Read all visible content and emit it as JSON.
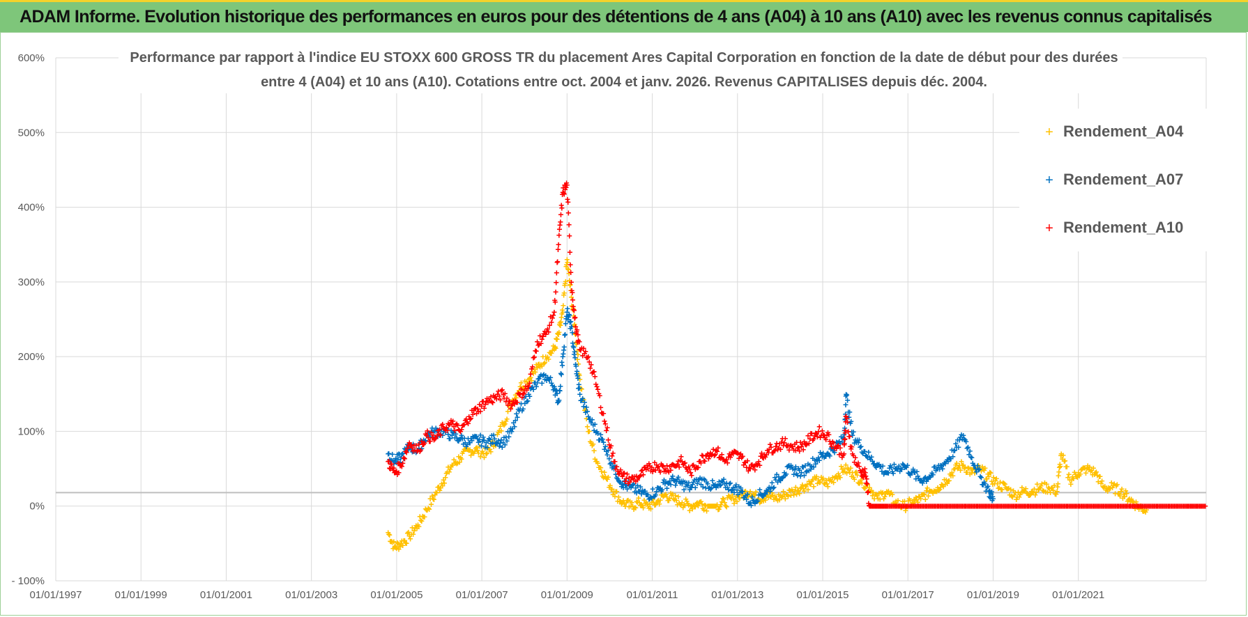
{
  "banner": {
    "title": "ADAM Informe. Evolution historique des performances en euros pour des détentions de 4 ans (A04) à 10 ans (A10) avec les revenus connus capitalisés"
  },
  "colors": {
    "banner_bg": "#7ec67a",
    "banner_accent": "#f5d22a",
    "A04": "#ffc000",
    "A07": "#0070c0",
    "A10": "#ff0000",
    "grid": "#d9d9d9",
    "text": "#595959"
  },
  "chart_data": {
    "type": "scatter",
    "title_lines": [
      "Performance par rapport à l'indice EU STOXX 600 GROSS TR  du placement Ares Capital Corporation en fonction de la date de début pour des durées",
      "entre 4 (A04) et 10 ans (A10).  Cotations entre oct. 2004 et janv. 2026.  Revenus CAPITALISES  depuis déc. 2004."
    ],
    "xlabel": "",
    "ylabel": "",
    "xlim": [
      1997.0,
      2024.0
    ],
    "ylim": [
      -100,
      600
    ],
    "y_ticks": [
      "- 100%",
      "0%",
      "100%",
      "200%",
      "300%",
      "400%",
      "500%",
      "600%"
    ],
    "y_tick_values": [
      -100,
      0,
      100,
      200,
      300,
      400,
      500,
      600
    ],
    "x_ticks": [
      "01/01/1997",
      "01/01/1999",
      "01/01/2001",
      "01/01/2003",
      "01/01/2005",
      "01/01/2007",
      "01/01/2009",
      "01/01/2011",
      "01/01/2013",
      "01/01/2015",
      "01/01/2017",
      "01/01/2019",
      "01/01/2021"
    ],
    "x_tick_values": [
      1997,
      1999,
      2001,
      2003,
      2005,
      2007,
      2009,
      2011,
      2013,
      2015,
      2017,
      2019,
      2021
    ],
    "reference_line_y": 18,
    "legend": [
      "Rendement_A04",
      "Rendement_A07",
      "Rendement_A10"
    ],
    "legend_position": "top-right",
    "marker": "+",
    "series": [
      {
        "name": "Rendement_A04",
        "color": "#ffc000",
        "points": [
          [
            2004.8,
            -35
          ],
          [
            2004.95,
            -55
          ],
          [
            2005.1,
            -50
          ],
          [
            2005.3,
            -40
          ],
          [
            2005.5,
            -25
          ],
          [
            2005.7,
            -5
          ],
          [
            2005.9,
            15
          ],
          [
            2006.1,
            35
          ],
          [
            2006.3,
            55
          ],
          [
            2006.5,
            65
          ],
          [
            2006.7,
            75
          ],
          [
            2006.9,
            75
          ],
          [
            2007.1,
            70
          ],
          [
            2007.3,
            85
          ],
          [
            2007.5,
            110
          ],
          [
            2007.7,
            140
          ],
          [
            2007.9,
            160
          ],
          [
            2008.1,
            170
          ],
          [
            2008.3,
            185
          ],
          [
            2008.5,
            200
          ],
          [
            2008.7,
            210
          ],
          [
            2008.8,
            230
          ],
          [
            2008.9,
            260
          ],
          [
            2009.0,
            330
          ],
          [
            2009.1,
            280
          ],
          [
            2009.2,
            230
          ],
          [
            2009.3,
            170
          ],
          [
            2009.5,
            100
          ],
          [
            2009.7,
            60
          ],
          [
            2009.9,
            40
          ],
          [
            2010.1,
            20
          ],
          [
            2010.3,
            5
          ],
          [
            2010.5,
            0
          ],
          [
            2010.7,
            5
          ],
          [
            2010.9,
            0
          ],
          [
            2011.1,
            5
          ],
          [
            2011.3,
            15
          ],
          [
            2011.5,
            10
          ],
          [
            2011.7,
            5
          ],
          [
            2011.9,
            0
          ],
          [
            2012.1,
            5
          ],
          [
            2012.3,
            0
          ],
          [
            2012.5,
            0
          ],
          [
            2012.7,
            5
          ],
          [
            2012.9,
            10
          ],
          [
            2013.1,
            15
          ],
          [
            2013.3,
            20
          ],
          [
            2013.5,
            10
          ],
          [
            2013.7,
            15
          ],
          [
            2013.9,
            10
          ],
          [
            2014.1,
            15
          ],
          [
            2014.3,
            20
          ],
          [
            2014.5,
            25
          ],
          [
            2014.7,
            30
          ],
          [
            2014.9,
            35
          ],
          [
            2015.1,
            30
          ],
          [
            2015.3,
            40
          ],
          [
            2015.5,
            50
          ],
          [
            2015.7,
            45
          ],
          [
            2015.9,
            35
          ],
          [
            2016.1,
            25
          ],
          [
            2016.3,
            10
          ],
          [
            2016.5,
            20
          ],
          [
            2016.7,
            5
          ],
          [
            2016.9,
            0
          ],
          [
            2017.1,
            5
          ],
          [
            2017.3,
            10
          ],
          [
            2017.5,
            20
          ],
          [
            2017.7,
            25
          ],
          [
            2017.9,
            35
          ],
          [
            2018.1,
            50
          ],
          [
            2018.3,
            55
          ],
          [
            2018.5,
            45
          ],
          [
            2018.7,
            50
          ],
          [
            2018.9,
            40
          ],
          [
            2019.1,
            30
          ],
          [
            2019.3,
            25
          ],
          [
            2019.5,
            15
          ],
          [
            2019.7,
            20
          ],
          [
            2019.9,
            20
          ],
          [
            2020.1,
            25
          ],
          [
            2020.3,
            25
          ],
          [
            2020.5,
            20
          ],
          [
            2020.6,
            70
          ],
          [
            2020.8,
            35
          ],
          [
            2021.0,
            45
          ],
          [
            2021.2,
            50
          ],
          [
            2021.4,
            45
          ],
          [
            2021.6,
            25
          ],
          [
            2021.8,
            25
          ],
          [
            2022.0,
            20
          ],
          [
            2022.2,
            10
          ],
          [
            2022.4,
            0
          ],
          [
            2022.6,
            -5
          ]
        ]
      },
      {
        "name": "Rendement_A07",
        "color": "#0070c0",
        "points": [
          [
            2004.8,
            70
          ],
          [
            2004.95,
            60
          ],
          [
            2005.1,
            65
          ],
          [
            2005.3,
            80
          ],
          [
            2005.5,
            75
          ],
          [
            2005.7,
            95
          ],
          [
            2005.9,
            100
          ],
          [
            2006.1,
            100
          ],
          [
            2006.3,
            95
          ],
          [
            2006.5,
            90
          ],
          [
            2006.7,
            85
          ],
          [
            2006.9,
            90
          ],
          [
            2007.1,
            85
          ],
          [
            2007.3,
            90
          ],
          [
            2007.5,
            85
          ],
          [
            2007.7,
            100
          ],
          [
            2007.9,
            130
          ],
          [
            2008.1,
            150
          ],
          [
            2008.3,
            165
          ],
          [
            2008.5,
            175
          ],
          [
            2008.7,
            160
          ],
          [
            2008.8,
            140
          ],
          [
            2008.9,
            200
          ],
          [
            2009.0,
            260
          ],
          [
            2009.1,
            240
          ],
          [
            2009.2,
            190
          ],
          [
            2009.3,
            150
          ],
          [
            2009.5,
            120
          ],
          [
            2009.7,
            100
          ],
          [
            2009.9,
            80
          ],
          [
            2010.1,
            50
          ],
          [
            2010.3,
            30
          ],
          [
            2010.5,
            25
          ],
          [
            2010.7,
            20
          ],
          [
            2010.9,
            15
          ],
          [
            2011.1,
            20
          ],
          [
            2011.3,
            30
          ],
          [
            2011.5,
            35
          ],
          [
            2011.7,
            30
          ],
          [
            2011.9,
            25
          ],
          [
            2012.1,
            35
          ],
          [
            2012.3,
            30
          ],
          [
            2012.5,
            25
          ],
          [
            2012.7,
            30
          ],
          [
            2012.9,
            25
          ],
          [
            2013.1,
            20
          ],
          [
            2013.3,
            5
          ],
          [
            2013.5,
            15
          ],
          [
            2013.7,
            20
          ],
          [
            2013.9,
            35
          ],
          [
            2014.1,
            45
          ],
          [
            2014.3,
            50
          ],
          [
            2014.5,
            45
          ],
          [
            2014.7,
            55
          ],
          [
            2014.9,
            65
          ],
          [
            2015.1,
            70
          ],
          [
            2015.3,
            80
          ],
          [
            2015.5,
            90
          ],
          [
            2015.55,
            150
          ],
          [
            2015.7,
            95
          ],
          [
            2015.9,
            80
          ],
          [
            2016.1,
            65
          ],
          [
            2016.3,
            55
          ],
          [
            2016.5,
            45
          ],
          [
            2016.7,
            50
          ],
          [
            2016.9,
            55
          ],
          [
            2017.1,
            45
          ],
          [
            2017.3,
            35
          ],
          [
            2017.5,
            40
          ],
          [
            2017.7,
            50
          ],
          [
            2017.9,
            60
          ],
          [
            2018.1,
            75
          ],
          [
            2018.3,
            95
          ],
          [
            2018.5,
            65
          ],
          [
            2018.7,
            40
          ],
          [
            2018.9,
            20
          ],
          [
            2019.0,
            10
          ]
        ]
      },
      {
        "name": "Rendement_A10",
        "color": "#ff0000",
        "points": [
          [
            2004.8,
            60
          ],
          [
            2004.95,
            45
          ],
          [
            2005.1,
            55
          ],
          [
            2005.3,
            85
          ],
          [
            2005.5,
            75
          ],
          [
            2005.7,
            95
          ],
          [
            2005.9,
            90
          ],
          [
            2006.1,
            105
          ],
          [
            2006.3,
            110
          ],
          [
            2006.5,
            100
          ],
          [
            2006.7,
            120
          ],
          [
            2006.9,
            130
          ],
          [
            2007.1,
            140
          ],
          [
            2007.3,
            145
          ],
          [
            2007.5,
            150
          ],
          [
            2007.7,
            135
          ],
          [
            2007.9,
            150
          ],
          [
            2008.1,
            160
          ],
          [
            2008.3,
            220
          ],
          [
            2008.5,
            230
          ],
          [
            2008.7,
            260
          ],
          [
            2008.8,
            350
          ],
          [
            2008.9,
            420
          ],
          [
            2009.0,
            430
          ],
          [
            2009.1,
            300
          ],
          [
            2009.2,
            240
          ],
          [
            2009.3,
            210
          ],
          [
            2009.5,
            200
          ],
          [
            2009.7,
            160
          ],
          [
            2009.9,
            110
          ],
          [
            2010.1,
            60
          ],
          [
            2010.3,
            40
          ],
          [
            2010.5,
            35
          ],
          [
            2010.7,
            40
          ],
          [
            2010.9,
            50
          ],
          [
            2011.1,
            55
          ],
          [
            2011.3,
            50
          ],
          [
            2011.5,
            55
          ],
          [
            2011.7,
            60
          ],
          [
            2011.9,
            45
          ],
          [
            2012.1,
            60
          ],
          [
            2012.3,
            70
          ],
          [
            2012.5,
            75
          ],
          [
            2012.7,
            60
          ],
          [
            2012.9,
            70
          ],
          [
            2013.1,
            65
          ],
          [
            2013.3,
            50
          ],
          [
            2013.5,
            60
          ],
          [
            2013.7,
            75
          ],
          [
            2013.9,
            80
          ],
          [
            2014.1,
            85
          ],
          [
            2014.3,
            80
          ],
          [
            2014.5,
            80
          ],
          [
            2014.7,
            90
          ],
          [
            2014.9,
            100
          ],
          [
            2015.1,
            95
          ],
          [
            2015.3,
            80
          ],
          [
            2015.5,
            70
          ],
          [
            2015.55,
            120
          ],
          [
            2015.7,
            70
          ],
          [
            2015.9,
            45
          ],
          [
            2016.0,
            45
          ],
          [
            2016.1,
            0
          ],
          [
            2016.5,
            0
          ],
          [
            2017.0,
            0
          ],
          [
            2017.5,
            0
          ],
          [
            2018.0,
            0
          ],
          [
            2018.5,
            0
          ],
          [
            2019.0,
            0
          ],
          [
            2019.5,
            0
          ],
          [
            2020.0,
            0
          ],
          [
            2020.5,
            0
          ],
          [
            2021.0,
            0
          ],
          [
            2021.5,
            0
          ],
          [
            2022.0,
            0
          ],
          [
            2022.5,
            0
          ],
          [
            2023.0,
            0
          ],
          [
            2023.5,
            0
          ],
          [
            2023.98,
            0
          ]
        ]
      }
    ]
  }
}
